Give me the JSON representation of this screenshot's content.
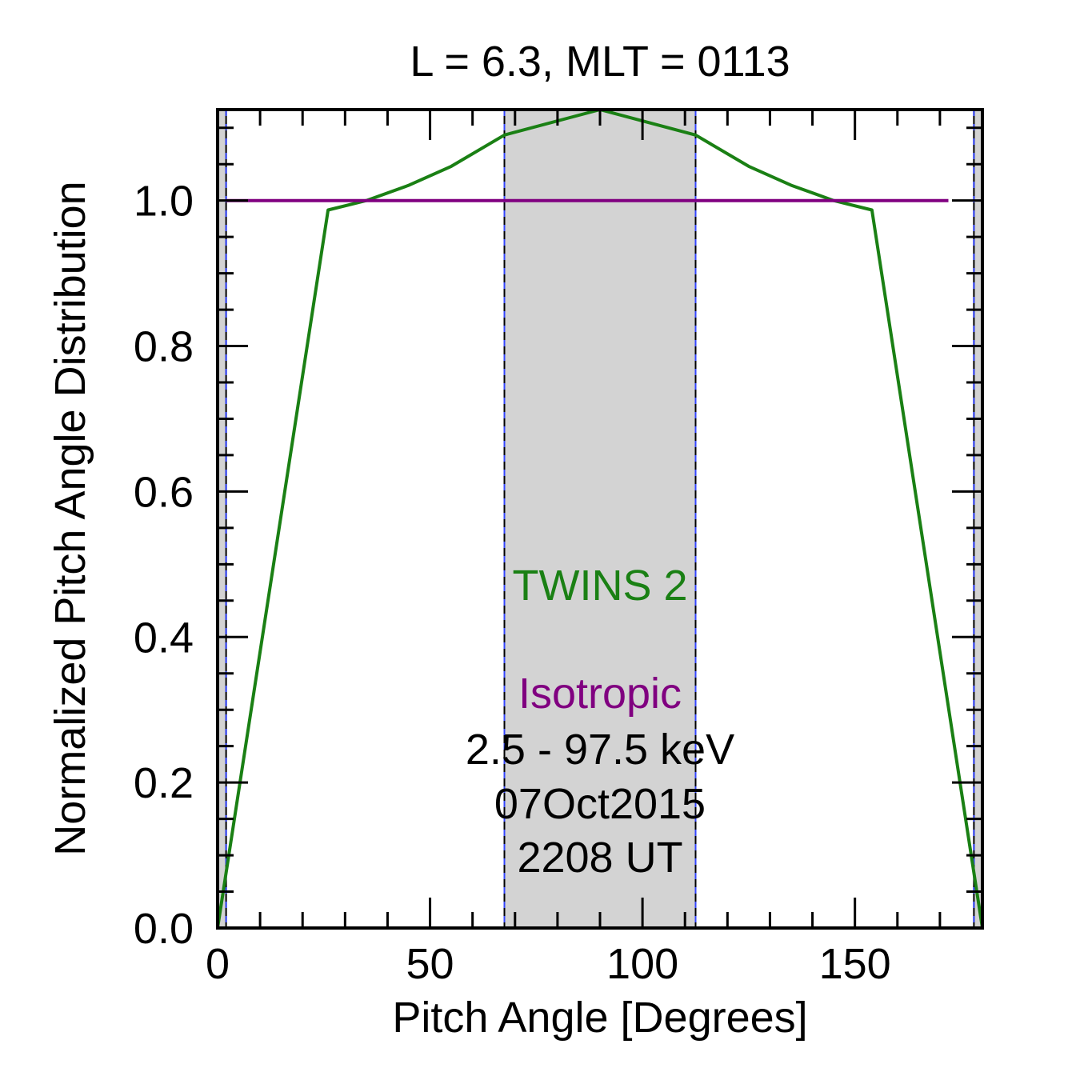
{
  "chart_data": {
    "type": "line",
    "title": "L =  6.3, MLT = 0113",
    "xlabel": "Pitch Angle [Degrees]",
    "ylabel": "Normalized Pitch Angle Distribution",
    "xlim": [
      0,
      180
    ],
    "ylim": [
      0,
      1.125
    ],
    "x_ticks": [
      0,
      50,
      100,
      150
    ],
    "x_tick_labels": [
      "0",
      "50",
      "100",
      "150"
    ],
    "y_ticks": [
      0,
      0.2,
      0.4,
      0.6,
      0.8,
      1.0
    ],
    "y_tick_labels": [
      "0.0",
      "0.2",
      "0.4",
      "0.6",
      "0.8",
      "1.0"
    ],
    "shaded_regions": [
      {
        "x0": 0,
        "x1": 2,
        "color": "#d3d3d3"
      },
      {
        "x0": 67.5,
        "x1": 112.5,
        "color": "#d3d3d3"
      },
      {
        "x0": 178,
        "x1": 180,
        "color": "#d3d3d3"
      }
    ],
    "series": [
      {
        "name": "TWINS 2",
        "color": "#1a8014",
        "x": [
          0,
          26,
          35,
          45,
          55,
          67.5,
          90,
          112.5,
          125,
          135,
          145,
          154,
          180
        ],
        "y": [
          0,
          0.987,
          1.0,
          1.021,
          1.047,
          1.09,
          1.125,
          1.09,
          1.047,
          1.021,
          1.0,
          0.987,
          0
        ]
      },
      {
        "name": "Isotropic",
        "color": "#800080",
        "x": [
          2,
          172
        ],
        "y": [
          1.0,
          1.0
        ]
      }
    ],
    "annotations": [
      {
        "text": "2.5 - 97.5 keV",
        "color": "#000000"
      },
      {
        "text": "07Oct2015",
        "color": "#000000"
      },
      {
        "text": "2208 UT",
        "color": "#000000"
      }
    ]
  }
}
